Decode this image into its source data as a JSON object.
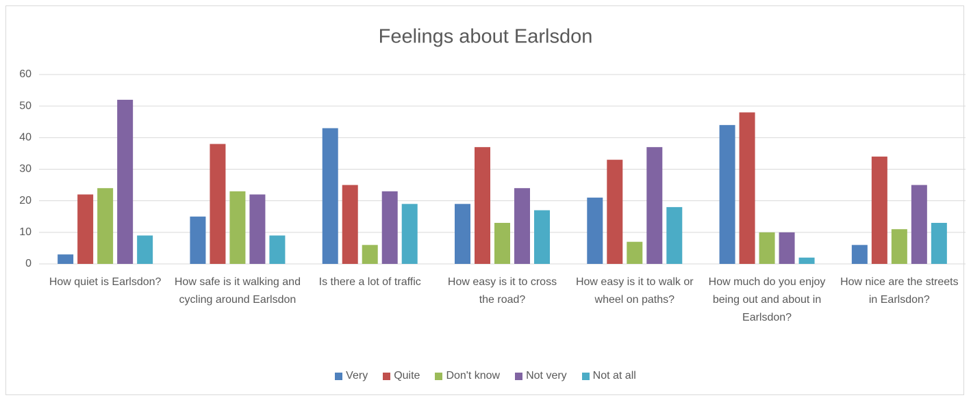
{
  "chart_data": {
    "type": "bar",
    "title": "Feelings about Earlsdon",
    "categories": [
      "How quiet is Earlsdon?",
      "How safe is it walking and cycling around Earlsdon",
      "Is there a lot of traffic",
      "How easy is it to cross the road?",
      "How easy is it to walk or wheel on paths?",
      "How much do you enjoy being out and about in Earlsdon?",
      "How nice are the streets in Earlsdon?"
    ],
    "series": [
      {
        "name": "Very",
        "color": "#4f81bd",
        "values": [
          3,
          15,
          43,
          19,
          21,
          44,
          6
        ]
      },
      {
        "name": "Quite",
        "color": "#c0504d",
        "values": [
          22,
          38,
          25,
          37,
          33,
          48,
          34
        ]
      },
      {
        "name": "Don't know",
        "color": "#9bbb59",
        "values": [
          24,
          23,
          6,
          13,
          7,
          10,
          11
        ]
      },
      {
        "name": "Not very",
        "color": "#8064a2",
        "values": [
          52,
          22,
          23,
          24,
          37,
          10,
          25
        ]
      },
      {
        "name": "Not at all",
        "color": "#4bacc6",
        "values": [
          9,
          9,
          19,
          17,
          18,
          2,
          13
        ]
      }
    ],
    "ylim": [
      0,
      60
    ],
    "yticks": [
      0,
      10,
      20,
      30,
      40,
      50,
      60
    ],
    "grid": true,
    "legend": "bottom"
  }
}
